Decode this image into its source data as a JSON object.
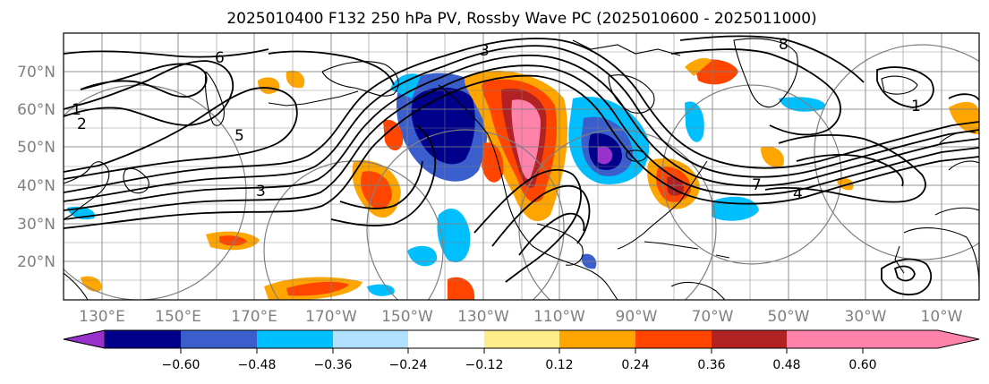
{
  "title": "2025010400 F132 250 hPa PV, Rossby Wave PC (2025010600 - 2025011000)",
  "lat_labels": [
    "70°N",
    "60°N",
    "50°N",
    "40°N",
    "30°N",
    "20°N"
  ],
  "lon_labels": [
    "130°E",
    "150°E",
    "170°E",
    "170°W",
    "150°W",
    "130°W",
    "110°W",
    "90°W",
    "70°W",
    "50°W",
    "30°W",
    "10°W"
  ],
  "contour_labels": [
    "1",
    "2",
    "3",
    "5",
    "6",
    "7",
    "8",
    "4",
    "1",
    "3"
  ],
  "colorbar": {
    "tick_labels": [
      "−0.60",
      "−0.48",
      "−0.36",
      "−0.24",
      "−0.12",
      "0.12",
      "0.24",
      "0.36",
      "0.48",
      "0.60"
    ],
    "colors": [
      "#9932cc",
      "#00008b",
      "#3a5fcd",
      "#00bfff",
      "#b0e2ff",
      "#ffffff",
      "#ffec8b",
      "#ffa500",
      "#ff4500",
      "#b22222",
      "#ff82ab"
    ]
  },
  "colors": {
    "land_outline": "#000000",
    "grid": "#7f7f7f",
    "pv_contour": "#000000",
    "circles": "#808080"
  }
}
